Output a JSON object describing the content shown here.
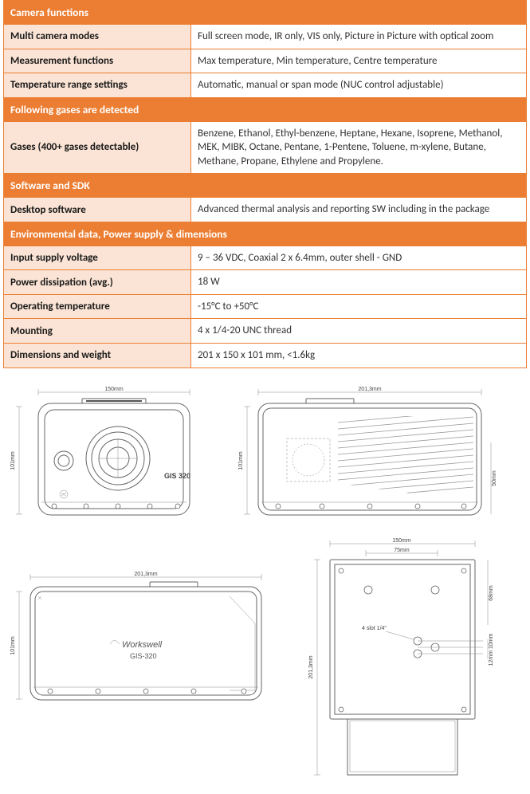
{
  "table": {
    "sections": [
      {
        "header": "Camera functions",
        "rows": [
          {
            "label": "Multi camera modes",
            "value": "Full screen mode, IR only, VIS only, Picture in Picture with optical zoom"
          },
          {
            "label": "Measurement functions",
            "value": "Max temperature, Min temperature, Centre temperature"
          },
          {
            "label": "Temperature range settings",
            "value": "Automatic, manual or span mode (NUC control adjustable)"
          }
        ]
      },
      {
        "header": "Following gases are detected",
        "rows": [
          {
            "label": "Gases (400+ gases detectable)",
            "value": "Benzene, Ethanol, Ethyl-benzene, Heptane, Hexane, Isoprene, Methanol, MEK, MIBK, Octane, Pentane, 1-Pentene, Toluene, m-xylene, Butane, Methane, Propane, Ethylene and Propylene."
          }
        ]
      },
      {
        "header": "Software and SDK",
        "rows": [
          {
            "label": "Desktop software",
            "value": "Advanced thermal analysis and reporting SW including in the package"
          }
        ]
      },
      {
        "header": "Environmental data, Power supply & dimensions",
        "rows": [
          {
            "label": "Input supply voltage",
            "value": "9 – 36 VDC, Coaxial 2 x 6.4mm, outer shell - GND"
          },
          {
            "label": "Power dissipation (avg.)",
            "value": "18 W"
          },
          {
            "label": "Operating temperature",
            "value": "-15°C to +50°C"
          },
          {
            "label": "Mounting",
            "value": "4 x 1/4-20 UNC thread"
          },
          {
            "label": "Dimensions and weight",
            "value": "201 x 150 x 101 mm, <1.6kg"
          }
        ]
      }
    ]
  },
  "drawings": {
    "front": {
      "width_label": "150mm",
      "height_label": "101mm",
      "model_label": "GIS 320"
    },
    "side_cutaway": {
      "width_label": "201,3mm",
      "height_label": "101mm",
      "inner_height_label": "50mm"
    },
    "side_profile": {
      "width_label": "201,3mm",
      "height_label": "101mm",
      "brand_label": "Workswell",
      "model_label": "GIS-320"
    },
    "bottom": {
      "width_label": "150mm",
      "depth_label": "201,3mm",
      "inner_width_label": "75mm",
      "offset1_label": "68mm",
      "offset2_label": "12mm 10mm",
      "thread_label": "4 slot 1/4\""
    },
    "colors": {
      "stroke": "#666666",
      "bg": "#ffffff",
      "accent": "#ec7e33",
      "label_bg": "#fbe4d5"
    }
  }
}
